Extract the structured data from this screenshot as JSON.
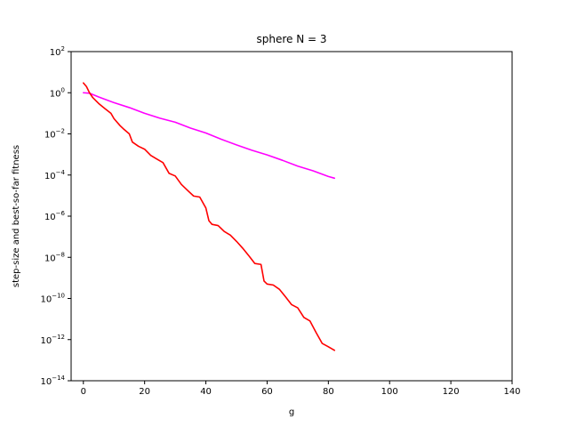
{
  "chart_data": {
    "type": "line",
    "title": "sphere N = 3",
    "xlabel": "g",
    "ylabel": "step-size and best-so-far fitness",
    "xlim": [
      -4,
      140
    ],
    "ylim_log10": [
      -14,
      2
    ],
    "yscale": "log",
    "grid": false,
    "xticks": [
      0,
      20,
      40,
      60,
      80,
      100,
      120,
      140
    ],
    "ytick_exponents": [
      -14,
      -12,
      -10,
      -8,
      -6,
      -4,
      -2,
      0,
      2
    ],
    "ytick_base": "10",
    "series": [
      {
        "color": "#ff00ff",
        "x": [
          0,
          2,
          5,
          10,
          15,
          20,
          25,
          30,
          35,
          40,
          45,
          50,
          55,
          60,
          65,
          70,
          75,
          80,
          82
        ],
        "y": [
          1.0,
          0.95,
          0.62,
          0.33,
          0.19,
          0.1,
          0.058,
          0.037,
          0.019,
          0.011,
          0.0055,
          0.0029,
          0.0016,
          0.00095,
          0.00052,
          0.00027,
          0.00016,
          8.5e-05,
          7e-05
        ]
      },
      {
        "color": "#ff0000",
        "x": [
          0,
          1,
          2,
          3,
          5,
          7,
          9,
          10,
          12,
          13,
          15,
          16,
          18,
          20,
          22,
          24,
          26,
          28,
          30,
          32,
          34,
          36,
          38,
          40,
          41,
          42,
          44,
          46,
          48,
          50,
          52,
          54,
          56,
          58,
          59,
          60,
          62,
          64,
          66,
          68,
          70,
          72,
          74,
          76,
          78,
          80,
          82
        ],
        "y": [
          3.0,
          2.0,
          1.0,
          0.6,
          0.3,
          0.17,
          0.1,
          0.055,
          0.025,
          0.018,
          0.01,
          0.004,
          0.0025,
          0.0018,
          0.0009,
          0.0006,
          0.0004,
          0.00012,
          9e-05,
          3.5e-05,
          1.8e-05,
          9.5e-06,
          8.5e-06,
          2.5e-06,
          6e-07,
          4e-07,
          3.5e-07,
          1.8e-07,
          1.2e-07,
          6e-08,
          2.8e-08,
          1.2e-08,
          5e-09,
          4.5e-09,
          7e-10,
          5e-10,
          4.5e-10,
          2.8e-10,
          1.2e-10,
          5e-11,
          3.5e-11,
          1.2e-11,
          8e-12,
          2.2e-12,
          6.5e-13,
          4.5e-13,
          3e-13
        ]
      }
    ]
  }
}
